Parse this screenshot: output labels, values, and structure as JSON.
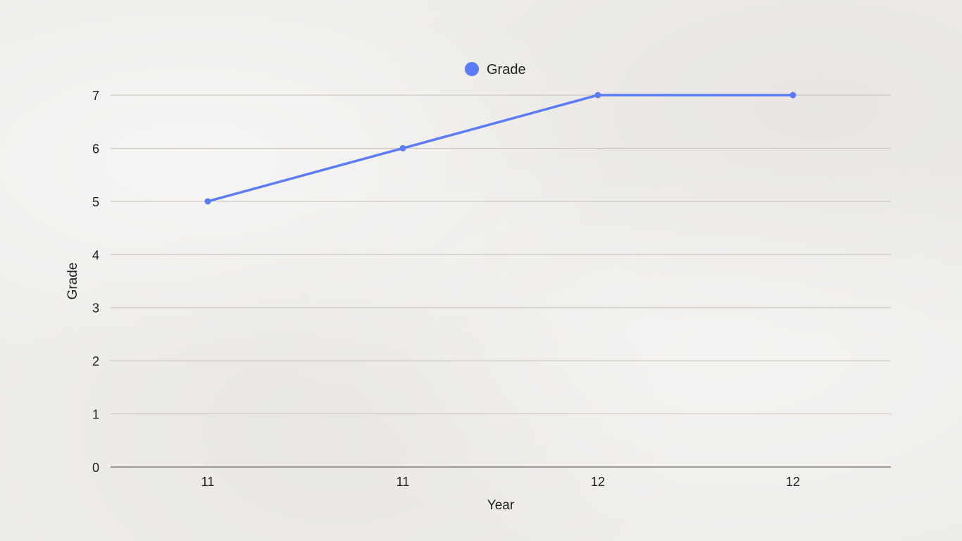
{
  "chart_data": {
    "type": "line",
    "categories": [
      "11",
      "11",
      "12",
      "12"
    ],
    "series": [
      {
        "name": "Grade",
        "values": [
          5,
          6,
          7,
          7
        ]
      }
    ],
    "xlabel": "Year",
    "ylabel": "Grade",
    "ylim": [
      0,
      7
    ],
    "yticks": [
      "0",
      "1",
      "2",
      "3",
      "4",
      "5",
      "6",
      "7"
    ],
    "grid": true,
    "legend": "top-center",
    "colors": {
      "series": "#5b7cf5",
      "grid": "#c4c1bd",
      "axis": "#6f6c69"
    }
  }
}
